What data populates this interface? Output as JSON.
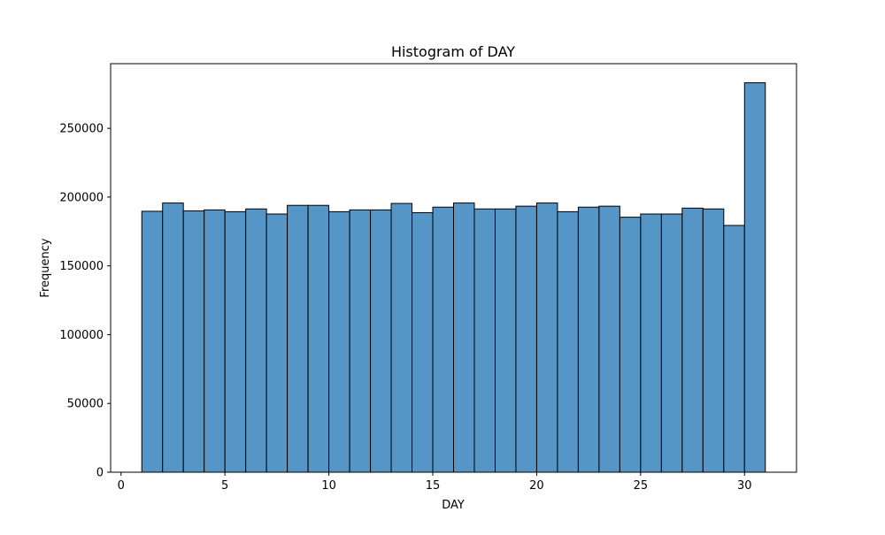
{
  "chart_data": {
    "type": "bar",
    "title": "Histogram of DAY",
    "xlabel": "DAY",
    "ylabel": "Frequency",
    "xlim": [
      -0.5,
      32.5
    ],
    "ylim": [
      0,
      297000
    ],
    "bins": [
      {
        "x0": 1,
        "x1": 2,
        "value": 189700
      },
      {
        "x0": 2,
        "x1": 3,
        "value": 195700
      },
      {
        "x0": 3,
        "x1": 4,
        "value": 190000
      },
      {
        "x0": 4,
        "x1": 5,
        "value": 190700
      },
      {
        "x0": 5,
        "x1": 6,
        "value": 189400
      },
      {
        "x0": 6,
        "x1": 7,
        "value": 191400
      },
      {
        "x0": 7,
        "x1": 8,
        "value": 187700
      },
      {
        "x0": 8,
        "x1": 9,
        "value": 194000
      },
      {
        "x0": 9,
        "x1": 10,
        "value": 194000
      },
      {
        "x0": 10,
        "x1": 11,
        "value": 189400
      },
      {
        "x0": 11,
        "x1": 12,
        "value": 190700
      },
      {
        "x0": 12,
        "x1": 13,
        "value": 190700
      },
      {
        "x0": 13,
        "x1": 14,
        "value": 195400
      },
      {
        "x0": 14,
        "x1": 15,
        "value": 188700
      },
      {
        "x0": 15,
        "x1": 16,
        "value": 192700
      },
      {
        "x0": 16,
        "x1": 17,
        "value": 195700
      },
      {
        "x0": 17,
        "x1": 18,
        "value": 191400
      },
      {
        "x0": 18,
        "x1": 19,
        "value": 191400
      },
      {
        "x0": 19,
        "x1": 20,
        "value": 193400
      },
      {
        "x0": 20,
        "x1": 21,
        "value": 195700
      },
      {
        "x0": 21,
        "x1": 22,
        "value": 189400
      },
      {
        "x0": 22,
        "x1": 23,
        "value": 192700
      },
      {
        "x0": 23,
        "x1": 24,
        "value": 193400
      },
      {
        "x0": 24,
        "x1": 25,
        "value": 185400
      },
      {
        "x0": 25,
        "x1": 26,
        "value": 187700
      },
      {
        "x0": 26,
        "x1": 27,
        "value": 187700
      },
      {
        "x0": 27,
        "x1": 28,
        "value": 192000
      },
      {
        "x0": 28,
        "x1": 29,
        "value": 191400
      },
      {
        "x0": 29,
        "x1": 30,
        "value": 179400
      },
      {
        "x0": 30,
        "x1": 31,
        "value": 283100
      }
    ],
    "xticks": [
      {
        "value": 0,
        "label": "0"
      },
      {
        "value": 5,
        "label": "5"
      },
      {
        "value": 10,
        "label": "10"
      },
      {
        "value": 15,
        "label": "15"
      },
      {
        "value": 20,
        "label": "20"
      },
      {
        "value": 25,
        "label": "25"
      },
      {
        "value": 30,
        "label": "30"
      }
    ],
    "yticks": [
      {
        "value": 0,
        "label": "0"
      },
      {
        "value": 50000,
        "label": "50000"
      },
      {
        "value": 100000,
        "label": "100000"
      },
      {
        "value": 150000,
        "label": "150000"
      },
      {
        "value": 200000,
        "label": "200000"
      },
      {
        "value": 250000,
        "label": "250000"
      }
    ],
    "grid": false,
    "legend": "none",
    "colors": {
      "bar_fill": "#4c90c3",
      "bar_fill_opacity": 0.95,
      "bar_edge": "#000000",
      "axes": "#000000"
    }
  }
}
